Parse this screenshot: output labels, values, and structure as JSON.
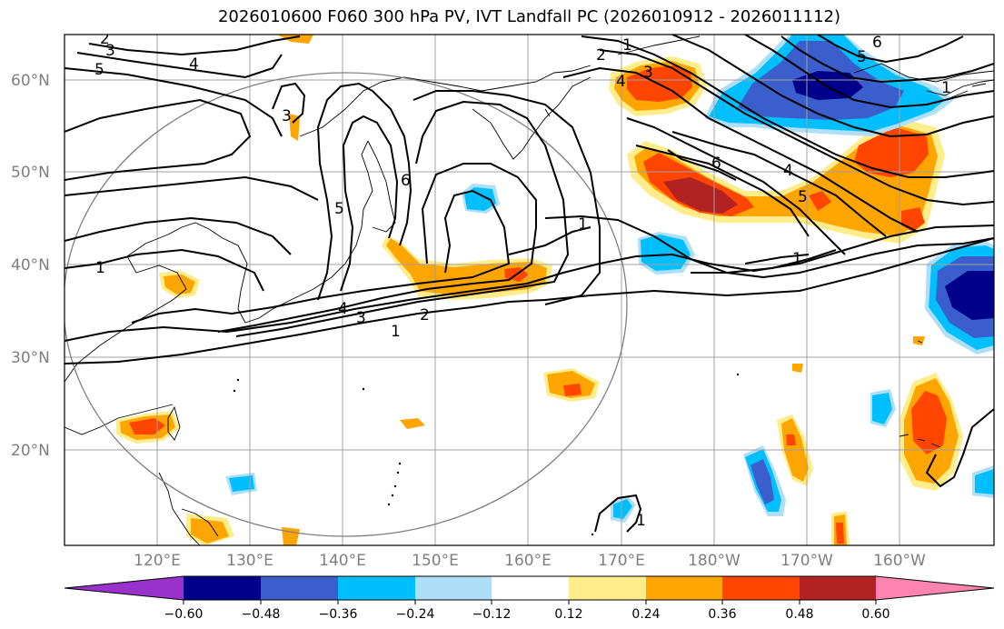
{
  "title": "2026010600 F060 300 hPa PV, IVT Landfall PC (2026010912 - 2026011112)",
  "lat_labels": [
    "60°N",
    "50°N",
    "40°N",
    "30°N",
    "20°N"
  ],
  "lon_labels": [
    "120°E",
    "130°E",
    "140°E",
    "150°E",
    "160°E",
    "170°E",
    "180°W",
    "170°W",
    "160°W"
  ],
  "colorbar": {
    "colors": [
      "#9932cc",
      "#00008b",
      "#3a5fcd",
      "#00bfff",
      "#aedff7",
      "#ffffff",
      "#ffec8b",
      "#ffa500",
      "#ff4500",
      "#b22222",
      "#ff83af"
    ],
    "tick_labels": [
      "−0.60",
      "−0.48",
      "−0.36",
      "−0.24",
      "−0.12",
      "0.12",
      "0.24",
      "0.36",
      "0.48",
      "0.60"
    ]
  },
  "pv_contour_labels": [
    "2",
    "3",
    "5",
    "4",
    "1",
    "2",
    "3",
    "4",
    "1",
    "6",
    "5",
    "3",
    "5",
    "6",
    "4",
    "5",
    "6",
    "1",
    "1",
    "4",
    "3",
    "2",
    "1",
    "1",
    "1"
  ]
}
